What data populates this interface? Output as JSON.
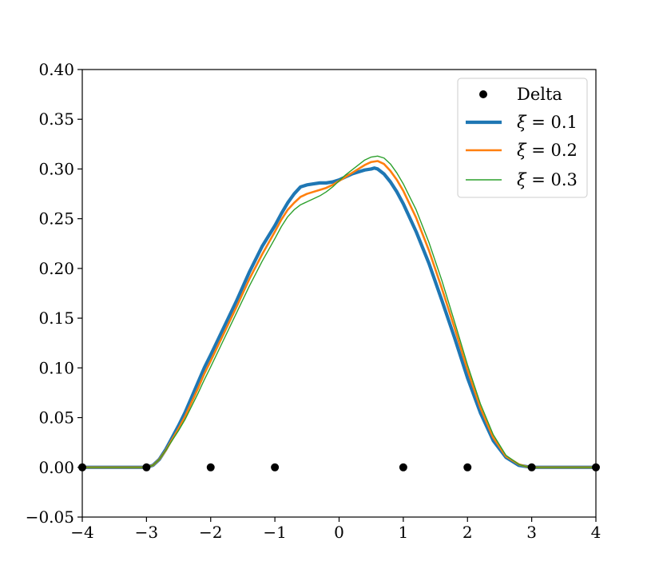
{
  "chart_data": {
    "type": "line",
    "title": "",
    "xlabel": "",
    "ylabel": "",
    "xlim": [
      -4,
      4
    ],
    "ylim": [
      -0.05,
      0.4
    ],
    "grid": false,
    "legend_position": "top-right",
    "x_ticks": [
      {
        "value": -4,
        "label": "−4"
      },
      {
        "value": -3,
        "label": "−3"
      },
      {
        "value": -2,
        "label": "−2"
      },
      {
        "value": -1,
        "label": "−1"
      },
      {
        "value": 0,
        "label": "0"
      },
      {
        "value": 1,
        "label": "1"
      },
      {
        "value": 2,
        "label": "2"
      },
      {
        "value": 3,
        "label": "3"
      },
      {
        "value": 4,
        "label": "4"
      }
    ],
    "y_ticks": [
      {
        "value": -0.05,
        "label": "−0.05"
      },
      {
        "value": 0.0,
        "label": "0.00"
      },
      {
        "value": 0.05,
        "label": "0.05"
      },
      {
        "value": 0.1,
        "label": "0.10"
      },
      {
        "value": 0.15,
        "label": "0.15"
      },
      {
        "value": 0.2,
        "label": "0.20"
      },
      {
        "value": 0.25,
        "label": "0.25"
      },
      {
        "value": 0.3,
        "label": "0.30"
      },
      {
        "value": 0.35,
        "label": "0.35"
      },
      {
        "value": 0.4,
        "label": "0.40"
      }
    ],
    "scatter_series": {
      "name": "Delta",
      "color": "#000000",
      "x": [
        -4,
        -3,
        -2,
        -1,
        1,
        2,
        3,
        4
      ],
      "y": [
        0,
        0,
        0,
        0,
        0,
        0,
        0,
        0
      ]
    },
    "series": [
      {
        "name": "ξ = 0.1",
        "legend_var": "ξ",
        "legend_rest": " = 0.1",
        "color": "#1f77b4",
        "weight": "thick",
        "x": [
          -4.0,
          -3.0,
          -2.9,
          -2.8,
          -2.7,
          -2.6,
          -2.5,
          -2.4,
          -2.3,
          -2.2,
          -2.1,
          -2.0,
          -1.8,
          -1.6,
          -1.4,
          -1.2,
          -1.0,
          -0.9,
          -0.8,
          -0.7,
          -0.6,
          -0.5,
          -0.4,
          -0.3,
          -0.2,
          -0.1,
          0.0,
          0.1,
          0.2,
          0.3,
          0.4,
          0.5,
          0.55,
          0.6,
          0.7,
          0.8,
          0.9,
          1.0,
          1.2,
          1.4,
          1.6,
          1.8,
          2.0,
          2.2,
          2.4,
          2.6,
          2.8,
          2.9,
          3.0,
          4.0
        ],
        "y": [
          0.0,
          0.0,
          0.002,
          0.008,
          0.018,
          0.03,
          0.042,
          0.055,
          0.07,
          0.085,
          0.1,
          0.113,
          0.14,
          0.167,
          0.196,
          0.222,
          0.243,
          0.255,
          0.266,
          0.275,
          0.282,
          0.284,
          0.285,
          0.286,
          0.286,
          0.287,
          0.289,
          0.292,
          0.295,
          0.297,
          0.299,
          0.3,
          0.301,
          0.3,
          0.295,
          0.287,
          0.277,
          0.265,
          0.237,
          0.205,
          0.168,
          0.13,
          0.09,
          0.055,
          0.027,
          0.01,
          0.002,
          0.001,
          0.0,
          0.0
        ]
      },
      {
        "name": "ξ = 0.2",
        "legend_var": "ξ",
        "legend_rest": " = 0.2",
        "color": "#ff7f0e",
        "weight": "medium",
        "x": [
          -4.0,
          -3.0,
          -2.9,
          -2.8,
          -2.7,
          -2.6,
          -2.5,
          -2.4,
          -2.3,
          -2.2,
          -2.1,
          -2.0,
          -1.8,
          -1.6,
          -1.4,
          -1.2,
          -1.0,
          -0.9,
          -0.8,
          -0.7,
          -0.6,
          -0.5,
          -0.4,
          -0.3,
          -0.2,
          -0.1,
          0.0,
          0.1,
          0.2,
          0.3,
          0.4,
          0.5,
          0.6,
          0.7,
          0.8,
          0.9,
          1.0,
          1.2,
          1.4,
          1.6,
          1.8,
          2.0,
          2.2,
          2.4,
          2.6,
          2.8,
          2.9,
          3.0,
          4.0
        ],
        "y": [
          0.0,
          0.0,
          0.002,
          0.008,
          0.017,
          0.028,
          0.039,
          0.051,
          0.065,
          0.079,
          0.094,
          0.107,
          0.134,
          0.161,
          0.189,
          0.214,
          0.237,
          0.249,
          0.259,
          0.266,
          0.272,
          0.275,
          0.277,
          0.279,
          0.281,
          0.284,
          0.288,
          0.292,
          0.296,
          0.3,
          0.304,
          0.307,
          0.308,
          0.305,
          0.298,
          0.289,
          0.278,
          0.251,
          0.218,
          0.18,
          0.14,
          0.098,
          0.06,
          0.03,
          0.011,
          0.003,
          0.001,
          0.0,
          0.0
        ]
      },
      {
        "name": "ξ = 0.3",
        "legend_var": "ξ",
        "legend_rest": " = 0.3",
        "color": "#2ca02c",
        "weight": "thin",
        "x": [
          -4.0,
          -3.0,
          -2.9,
          -2.8,
          -2.7,
          -2.6,
          -2.5,
          -2.4,
          -2.3,
          -2.2,
          -2.1,
          -2.0,
          -1.8,
          -1.6,
          -1.4,
          -1.2,
          -1.0,
          -0.9,
          -0.8,
          -0.7,
          -0.6,
          -0.5,
          -0.4,
          -0.3,
          -0.2,
          -0.1,
          0.0,
          0.1,
          0.2,
          0.3,
          0.4,
          0.5,
          0.6,
          0.7,
          0.8,
          0.9,
          1.0,
          1.2,
          1.4,
          1.6,
          1.8,
          2.0,
          2.2,
          2.4,
          2.6,
          2.8,
          2.9,
          3.0,
          4.0
        ],
        "y": [
          0.0,
          0.0,
          0.002,
          0.008,
          0.017,
          0.027,
          0.037,
          0.048,
          0.061,
          0.074,
          0.088,
          0.101,
          0.128,
          0.155,
          0.182,
          0.207,
          0.23,
          0.242,
          0.252,
          0.259,
          0.264,
          0.267,
          0.27,
          0.273,
          0.277,
          0.282,
          0.288,
          0.294,
          0.299,
          0.304,
          0.309,
          0.312,
          0.313,
          0.311,
          0.305,
          0.296,
          0.285,
          0.259,
          0.226,
          0.188,
          0.146,
          0.103,
          0.064,
          0.033,
          0.012,
          0.003,
          0.001,
          0.0,
          0.0
        ]
      }
    ]
  }
}
